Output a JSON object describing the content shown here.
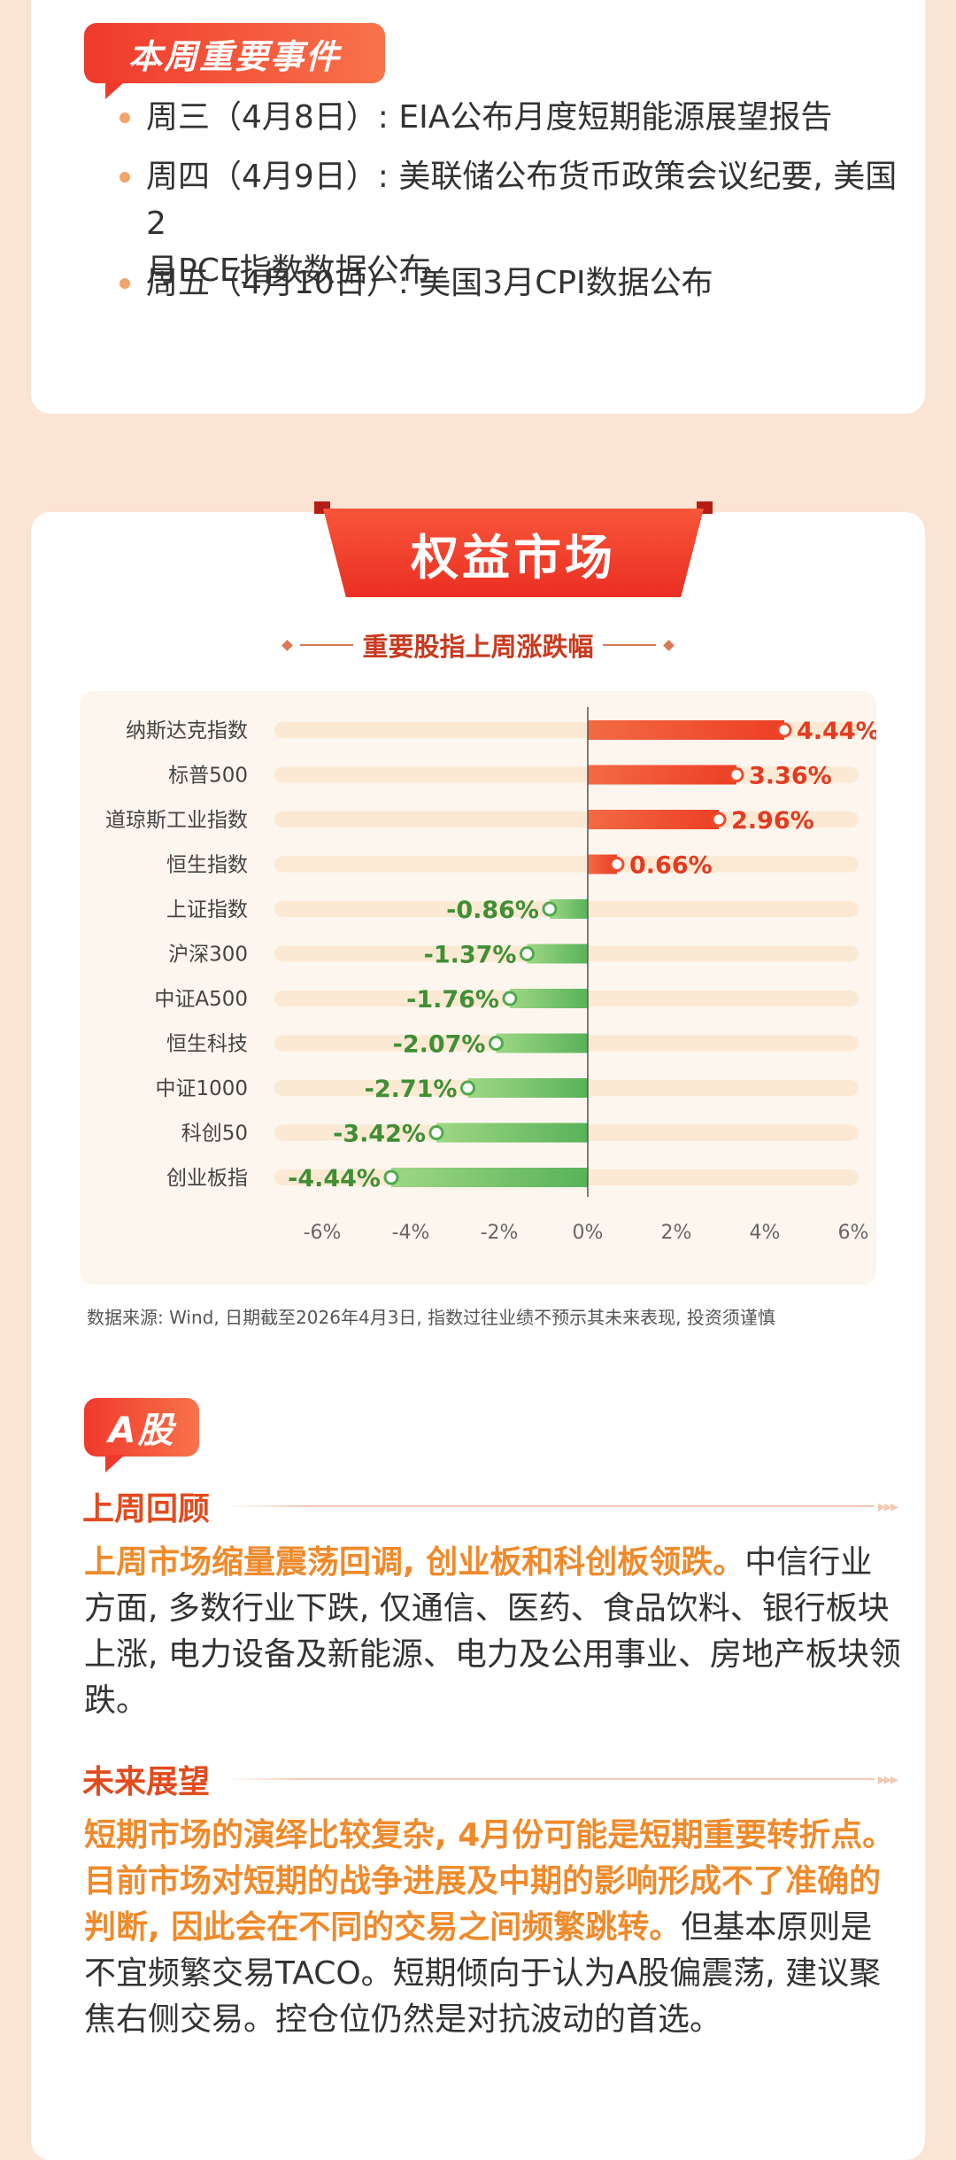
{
  "events": {
    "tag": "本周重要事件",
    "items": [
      {
        "line1": "周三（4月8日）: EIA公布月度短期能源展望报告",
        "line2": ""
      },
      {
        "line1": "周四（4月9日）: 美联储公布货币政策会议纪要, 美国2",
        "line2": "月PCE指数数据公布"
      },
      {
        "line1": "周五（4月10日）: 美国3月CPI数据公布",
        "line2": ""
      }
    ]
  },
  "market": {
    "ribbon": "权益市场",
    "chart_title": "重要股指上周涨跌幅",
    "source_note": "数据来源: Wind, 日期截至2026年4月3日, 指数过往业绩不预示其未来表现, 投资须谨慎"
  },
  "chart_data": {
    "type": "bar",
    "orientation": "horizontal",
    "title": "重要股指上周涨跌幅",
    "categories": [
      "纳斯达克指数",
      "标普500",
      "道琼斯工业指数",
      "恒生指数",
      "上证指数",
      "沪深300",
      "中证A500",
      "恒生科技",
      "中证1000",
      "科创50",
      "创业板指"
    ],
    "values": [
      4.44,
      3.36,
      2.96,
      0.66,
      -0.86,
      -1.37,
      -1.76,
      -2.07,
      -2.71,
      -3.42,
      -4.44
    ],
    "value_labels": [
      "4.44%",
      "3.36%",
      "2.96%",
      "0.66%",
      "-0.86%",
      "-1.37%",
      "-1.76%",
      "-2.07%",
      "-2.71%",
      "-3.42%",
      "-4.44%"
    ],
    "xlim": [
      -6,
      6
    ],
    "xticks": [
      -6,
      -4,
      -2,
      0,
      2,
      4,
      6
    ],
    "xtick_labels": [
      "-6%",
      "-4%",
      "-2%",
      "0%",
      "2%",
      "4%",
      "6%"
    ],
    "grid": false,
    "colors": {
      "positive": "#ef4b2c",
      "negative": "#4faa4e",
      "positive_label": "#e23b22",
      "negative_label": "#3f8f35",
      "track": "#fbe9d3"
    }
  },
  "a_share": {
    "tag": "A股",
    "review": {
      "heading": "上周回顾",
      "highlight": "上周市场缩量震荡回调, 创业板和科创板领跌。",
      "text": "中信行业方面, 多数行业下跌, 仅通信、医药、食品饮料、银行板块上涨, 电力设备及新能源、电力及公用事业、房地产板块领跌。"
    },
    "outlook": {
      "heading": "未来展望",
      "highlight": "短期市场的演绎比较复杂, 4月份可能是短期重要转折点。目前市场对短期的战争进展及中期的影响形成不了准确的判断, 因此会在不同的交易之间频繁跳转。",
      "text": "但基本原则是不宜频繁交易TACO。短期倾向于认为A股偏震荡, 建议聚焦右侧交易。控仓位仍然是对抗波动的首选。"
    }
  }
}
